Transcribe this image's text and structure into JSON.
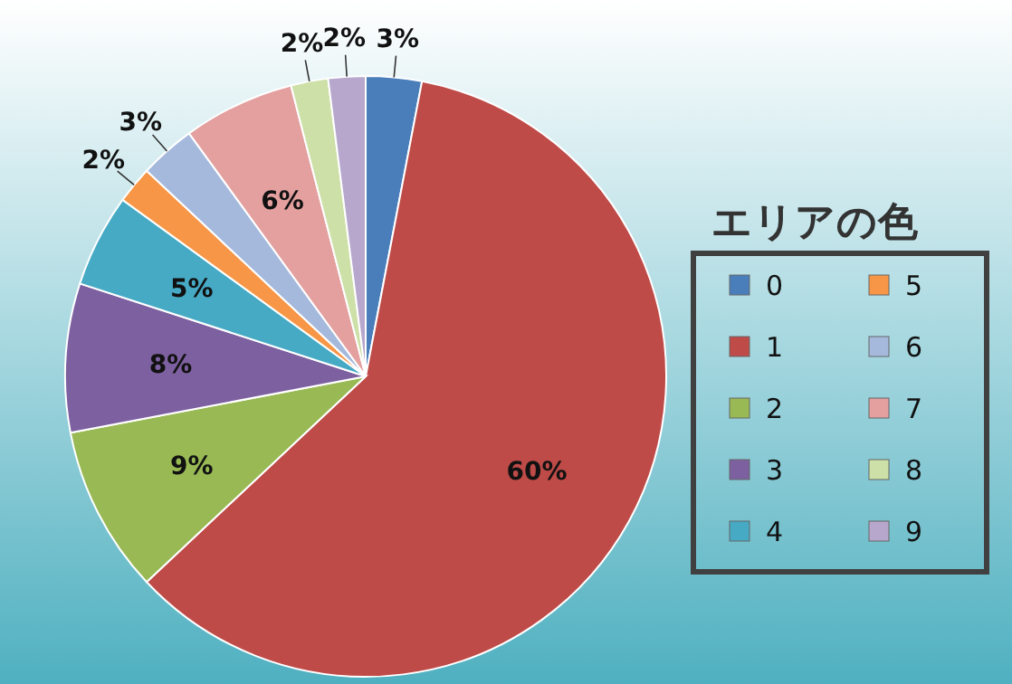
{
  "chart_data": {
    "type": "pie",
    "legend_title": "エリアの色",
    "legend": "right",
    "value_labels": [
      "3%",
      "60%",
      "9%",
      "8%",
      "5%",
      "2%",
      "3%",
      "6%",
      "2%",
      "2%"
    ],
    "categories": [
      "0",
      "1",
      "2",
      "3",
      "4",
      "5",
      "6",
      "7",
      "8",
      "9"
    ],
    "values": [
      3,
      60,
      9,
      8,
      5,
      2,
      3,
      6,
      2,
      2
    ],
    "colors": [
      "#4a7ebb",
      "#be4b48",
      "#98b954",
      "#7d60a0",
      "#46aac5",
      "#f79646",
      "#a5b9dd",
      "#e3a09f",
      "#cde0a8",
      "#b7a7cc"
    ]
  }
}
